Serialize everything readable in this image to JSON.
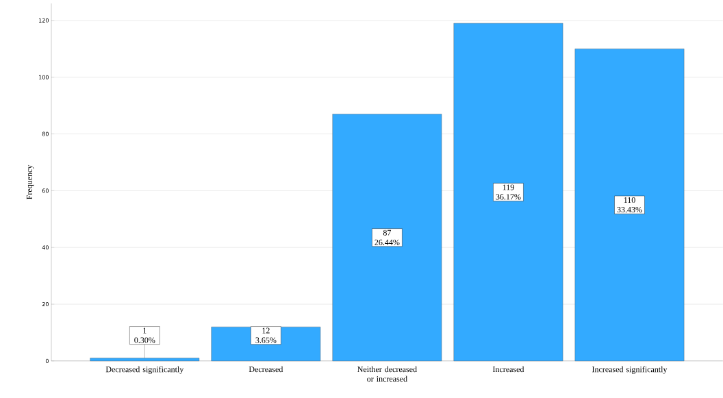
{
  "chart_data": {
    "type": "bar",
    "ylabel": "Frequency",
    "categories": [
      "Decreased significantly",
      "Decreased",
      "Neither decreased or increased",
      "Increased",
      "Increased significantly"
    ],
    "values": [
      1,
      12,
      87,
      119,
      110
    ],
    "value_labels": [
      "1 0.30%",
      "12 3.65%",
      "87 26.44%",
      "119 36.17%",
      "110 33.43%"
    ],
    "color": "#33aaff",
    "ylim": [
      0,
      126
    ],
    "yticks": [
      0,
      20,
      40,
      60,
      80,
      100,
      120
    ],
    "grid": "y"
  }
}
